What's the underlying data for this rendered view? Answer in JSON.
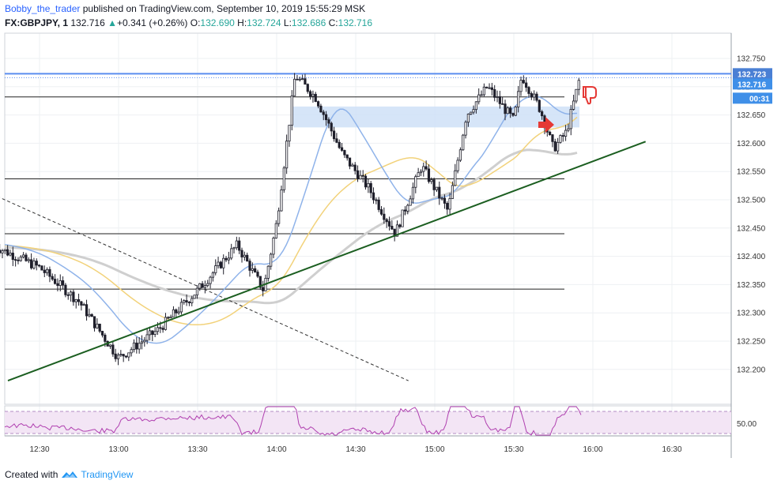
{
  "header": {
    "author": "Bobby_the_trader",
    "published_text": "published on TradingView.com, September 10, 2019 15:55:29 MSK",
    "symbol": "FX:GBPJPY, 1",
    "last": "132.716",
    "change_arrow": "▲",
    "change": "+0.341 (+0.26%)",
    "o_label": "O:",
    "o_value": "132.690",
    "h_label": "H:",
    "h_value": "132.724",
    "l_label": "L:",
    "l_value": "132.686",
    "c_label": "C:",
    "c_value": "132.716"
  },
  "footer": {
    "created_text": "Created with",
    "brand": "TradingView"
  },
  "price_axis": {
    "ticks": [
      "132.750",
      "132.700",
      "132.650",
      "132.600",
      "132.550",
      "132.500",
      "132.450",
      "132.400",
      "132.350",
      "132.300",
      "132.250",
      "132.200"
    ],
    "badges": [
      {
        "text": "132.723",
        "color": "#4a7fd4"
      },
      {
        "text": "132.716",
        "color": "#3f8fe8"
      },
      {
        "text": "00:31",
        "color": "#3f8fe8"
      }
    ]
  },
  "time_axis": {
    "ticks": [
      "12:30",
      "13:00",
      "13:30",
      "14:00",
      "14:30",
      "15:00",
      "15:30",
      "16:00",
      "16:30"
    ]
  },
  "rsi_axis": {
    "ticks": [
      "50.00"
    ]
  },
  "colors": {
    "trendline": "#1b5e20",
    "resistance": "#5b8def",
    "zone": "#cfe0f7",
    "ma_fast": "#8fb3ea",
    "ma_mid": "#f2d27a",
    "ma_slow": "#cfcfcf",
    "rsi_line": "#b040b0",
    "rsi_band": "#f3e5f5",
    "arrow": "#e53935"
  },
  "chart_data": {
    "type": "candlestick",
    "symbol": "FX:GBPJPY",
    "interval": "1",
    "x_ticks": [
      "12:30",
      "13:00",
      "13:30",
      "14:00",
      "14:30",
      "15:00",
      "15:30",
      "16:00",
      "16:30"
    ],
    "ylim": [
      132.17,
      132.79
    ],
    "horizontal_levels": [
      132.723,
      132.682,
      132.537,
      132.44,
      132.342
    ],
    "resistance_level": 132.723,
    "zone": {
      "from": 132.628,
      "to": 132.665
    },
    "trendline_points": [
      {
        "time": "12:18",
        "price": 132.18
      },
      {
        "time": "16:20",
        "price": 132.603
      }
    ],
    "dashed_line_points": [
      {
        "time": "12:12",
        "price": 132.51
      },
      {
        "time": "14:50",
        "price": 132.18
      }
    ],
    "price_path": [
      {
        "time": "12:12",
        "price": 132.42
      },
      {
        "time": "12:30",
        "price": 132.38
      },
      {
        "time": "12:45",
        "price": 132.32
      },
      {
        "time": "13:00",
        "price": 132.22
      },
      {
        "time": "13:15",
        "price": 132.27
      },
      {
        "time": "13:30",
        "price": 132.34
      },
      {
        "time": "13:45",
        "price": 132.42
      },
      {
        "time": "13:55",
        "price": 132.34
      },
      {
        "time": "14:00",
        "price": 132.46
      },
      {
        "time": "14:07",
        "price": 132.72
      },
      {
        "time": "14:15",
        "price": 132.68
      },
      {
        "time": "14:25",
        "price": 132.58
      },
      {
        "time": "14:35",
        "price": 132.52
      },
      {
        "time": "14:45",
        "price": 132.44
      },
      {
        "time": "14:55",
        "price": 132.56
      },
      {
        "time": "15:05",
        "price": 132.48
      },
      {
        "time": "15:12",
        "price": 132.65
      },
      {
        "time": "15:20",
        "price": 132.7
      },
      {
        "time": "15:30",
        "price": 132.64
      },
      {
        "time": "15:33",
        "price": 132.72
      },
      {
        "time": "15:40",
        "price": 132.66
      },
      {
        "time": "15:45",
        "price": 132.59
      },
      {
        "time": "15:50",
        "price": 132.62
      },
      {
        "time": "15:55",
        "price": 132.716
      }
    ]
  }
}
